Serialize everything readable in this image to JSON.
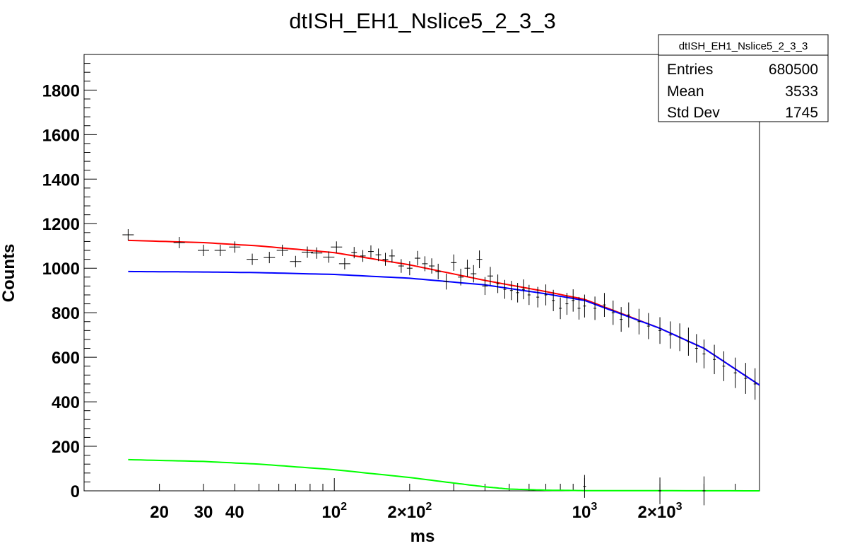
{
  "chart_data": {
    "type": "scatter",
    "title": "dtISH_EH1_Nslice5_2_3_3",
    "xlabel": "ms",
    "ylabel": "Counts",
    "x_scale": "log",
    "xlim": [
      10,
      5000
    ],
    "ylim": [
      0,
      1960
    ],
    "grid": false,
    "y_ticks": [
      0,
      200,
      400,
      600,
      800,
      1000,
      1200,
      1400,
      1600,
      1800
    ],
    "x_tick_labels": [
      {
        "value": 20,
        "base": "20",
        "exp": ""
      },
      {
        "value": 30,
        "base": "30",
        "exp": ""
      },
      {
        "value": 40,
        "base": "40",
        "exp": ""
      },
      {
        "value": 100,
        "base": "10",
        "exp": "2"
      },
      {
        "value": 200,
        "base": "2×10",
        "exp": "2"
      },
      {
        "value": 1000,
        "base": "10",
        "exp": "3"
      },
      {
        "value": 2000,
        "base": "2×10",
        "exp": "3"
      }
    ],
    "stats_box": {
      "title": "dtISH_EH1_Nslice5_2_3_3",
      "rows": [
        {
          "label": "Entries",
          "value": "680500"
        },
        {
          "label": "Mean",
          "value": "3533"
        },
        {
          "label": "Std Dev",
          "value": "1745"
        }
      ]
    },
    "series": [
      {
        "kind": "curve",
        "color": "#ff0000",
        "x": [
          15,
          30,
          50,
          100,
          200,
          400,
          700,
          1000,
          2000,
          3000,
          5000
        ],
        "y": [
          1125,
          1115,
          1100,
          1070,
          1015,
          945,
          895,
          860,
          730,
          640,
          475
        ]
      },
      {
        "kind": "curve",
        "color": "#0000ff",
        "x": [
          15,
          30,
          50,
          100,
          200,
          400,
          700,
          1000,
          2000,
          3000,
          5000
        ],
        "y": [
          985,
          983,
          980,
          972,
          955,
          925,
          885,
          855,
          730,
          640,
          475
        ]
      },
      {
        "kind": "curve",
        "color": "#00ff00",
        "x": [
          15,
          30,
          50,
          100,
          200,
          300,
          400,
          500,
          700,
          1000,
          5000
        ],
        "y": [
          140,
          132,
          120,
          95,
          60,
          35,
          18,
          8,
          3,
          1,
          0
        ]
      },
      {
        "kind": "points",
        "color": "#000000",
        "x": [
          15,
          24,
          30,
          35,
          40,
          47,
          55,
          62,
          70,
          78,
          85,
          95,
          102,
          110,
          120,
          130,
          140,
          150,
          160,
          170,
          185,
          200,
          215,
          230,
          245,
          260,
          280,
          300,
          320,
          340,
          360,
          380,
          400,
          420,
          450,
          480,
          510,
          540,
          570,
          600,
          650,
          700,
          750,
          800,
          850,
          900,
          950,
          1000,
          1100,
          1200,
          1300,
          1400,
          1500,
          1650,
          1800,
          2000,
          2200,
          2400,
          2600,
          2800,
          3000,
          3300,
          3600,
          4000,
          4400,
          4800
        ],
        "y": [
          1150,
          1115,
          1080,
          1080,
          1095,
          1040,
          1048,
          1080,
          1030,
          1072,
          1068,
          1050,
          1095,
          1020,
          1070,
          1055,
          1075,
          1060,
          1040,
          1055,
          1010,
          1000,
          1045,
          1020,
          1010,
          985,
          940,
          1025,
          960,
          1000,
          975,
          1040,
          920,
          965,
          930,
          905,
          900,
          890,
          905,
          880,
          870,
          880,
          855,
          820,
          840,
          855,
          820,
          830,
          820,
          835,
          800,
          770,
          790,
          760,
          740,
          720,
          700,
          690,
          670,
          640,
          615,
          590,
          560,
          530,
          505,
          480
        ]
      },
      {
        "kind": "points",
        "color": "#000000",
        "x": [
          1000,
          2000,
          3000
        ],
        "y": [
          20,
          0,
          0
        ]
      }
    ]
  }
}
